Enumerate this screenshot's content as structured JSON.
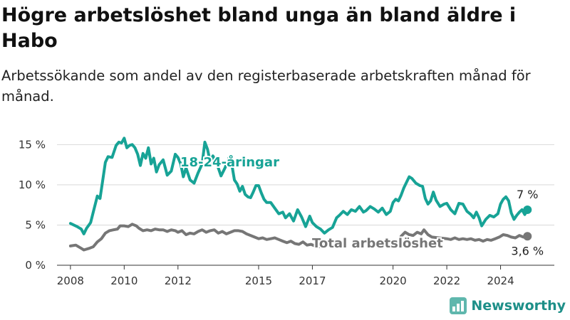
{
  "chart_data": {
    "type": "line",
    "title": "Högre arbetslöshet bland unga än bland äldre i Habo",
    "subtitle": "Arbetssökande som andel av den registerbaserade arbetskraften månad för månad.",
    "x_ticks": [
      "2008",
      "2010",
      "2012",
      "2015",
      "2017",
      "2020",
      "2022",
      "2024"
    ],
    "y_ticks": [
      "0 %",
      "5 %",
      "10 %",
      "15 %"
    ],
    "ylim": [
      0,
      16
    ],
    "grid": "horizontal",
    "series": [
      {
        "name": "18-24-åringar",
        "color": "#17a396",
        "end_label": "7 %",
        "points": [
          [
            2008.0,
            5.2
          ],
          [
            2008.25,
            4.8
          ],
          [
            2008.4,
            4.5
          ],
          [
            2008.5,
            3.9
          ],
          [
            2008.6,
            4.6
          ],
          [
            2008.75,
            5.3
          ],
          [
            2008.85,
            6.6
          ],
          [
            2009.0,
            8.6
          ],
          [
            2009.1,
            8.3
          ],
          [
            2009.2,
            10.5
          ],
          [
            2009.3,
            12.8
          ],
          [
            2009.4,
            13.5
          ],
          [
            2009.55,
            13.4
          ],
          [
            2009.7,
            14.9
          ],
          [
            2009.8,
            15.3
          ],
          [
            2009.9,
            15.2
          ],
          [
            2010.0,
            15.8
          ],
          [
            2010.1,
            14.6
          ],
          [
            2010.2,
            14.9
          ],
          [
            2010.3,
            15.0
          ],
          [
            2010.4,
            14.6
          ],
          [
            2010.5,
            13.8
          ],
          [
            2010.6,
            12.4
          ],
          [
            2010.7,
            13.9
          ],
          [
            2010.8,
            13.3
          ],
          [
            2010.9,
            14.6
          ],
          [
            2011.0,
            12.6
          ],
          [
            2011.1,
            13.3
          ],
          [
            2011.2,
            11.6
          ],
          [
            2011.3,
            12.5
          ],
          [
            2011.45,
            13.1
          ],
          [
            2011.6,
            11.2
          ],
          [
            2011.75,
            11.7
          ],
          [
            2011.9,
            13.8
          ],
          [
            2012.0,
            13.4
          ],
          [
            2012.1,
            12.6
          ],
          [
            2012.2,
            11.0
          ],
          [
            2012.3,
            12.1
          ],
          [
            2012.45,
            10.6
          ],
          [
            2012.6,
            10.2
          ],
          [
            2012.75,
            11.5
          ],
          [
            2012.9,
            12.6
          ],
          [
            2013.0,
            15.3
          ],
          [
            2013.1,
            14.4
          ],
          [
            2013.2,
            12.8
          ],
          [
            2013.3,
            13.6
          ],
          [
            2013.45,
            12.6
          ],
          [
            2013.6,
            11.1
          ],
          [
            2013.75,
            12.1
          ],
          [
            2013.9,
            13.4
          ],
          [
            2014.0,
            12.6
          ],
          [
            2014.1,
            10.6
          ],
          [
            2014.2,
            10.1
          ],
          [
            2014.3,
            9.2
          ],
          [
            2014.4,
            9.8
          ],
          [
            2014.5,
            8.8
          ],
          [
            2014.6,
            8.5
          ],
          [
            2014.7,
            8.4
          ],
          [
            2014.8,
            9.1
          ],
          [
            2014.9,
            9.9
          ],
          [
            2015.0,
            9.9
          ],
          [
            2015.1,
            9.0
          ],
          [
            2015.2,
            8.2
          ],
          [
            2015.3,
            7.8
          ],
          [
            2015.45,
            7.8
          ],
          [
            2015.6,
            7.1
          ],
          [
            2015.75,
            6.4
          ],
          [
            2015.9,
            6.6
          ],
          [
            2016.0,
            5.9
          ],
          [
            2016.15,
            6.4
          ],
          [
            2016.3,
            5.5
          ],
          [
            2016.45,
            6.9
          ],
          [
            2016.6,
            6.0
          ],
          [
            2016.75,
            4.8
          ],
          [
            2016.9,
            6.1
          ],
          [
            2017.0,
            5.3
          ],
          [
            2017.15,
            4.8
          ],
          [
            2017.3,
            4.5
          ],
          [
            2017.45,
            4.0
          ],
          [
            2017.6,
            4.4
          ],
          [
            2017.75,
            4.7
          ],
          [
            2017.9,
            5.9
          ],
          [
            2018.0,
            6.2
          ],
          [
            2018.15,
            6.7
          ],
          [
            2018.3,
            6.3
          ],
          [
            2018.45,
            6.9
          ],
          [
            2018.6,
            6.7
          ],
          [
            2018.75,
            7.3
          ],
          [
            2018.9,
            6.6
          ],
          [
            2019.0,
            6.8
          ],
          [
            2019.15,
            7.3
          ],
          [
            2019.3,
            7.0
          ],
          [
            2019.45,
            6.6
          ],
          [
            2019.6,
            7.1
          ],
          [
            2019.75,
            6.3
          ],
          [
            2019.9,
            6.7
          ],
          [
            2020.0,
            7.8
          ],
          [
            2020.1,
            8.2
          ],
          [
            2020.2,
            8.0
          ],
          [
            2020.3,
            8.7
          ],
          [
            2020.4,
            9.6
          ],
          [
            2020.5,
            10.3
          ],
          [
            2020.6,
            11.0
          ],
          [
            2020.7,
            10.8
          ],
          [
            2020.85,
            10.2
          ],
          [
            2021.0,
            9.9
          ],
          [
            2021.1,
            9.8
          ],
          [
            2021.2,
            8.3
          ],
          [
            2021.3,
            7.6
          ],
          [
            2021.4,
            8.0
          ],
          [
            2021.5,
            9.1
          ],
          [
            2021.6,
            8.1
          ],
          [
            2021.75,
            7.3
          ],
          [
            2021.9,
            7.6
          ],
          [
            2022.0,
            7.7
          ],
          [
            2022.15,
            6.9
          ],
          [
            2022.3,
            6.4
          ],
          [
            2022.45,
            7.7
          ],
          [
            2022.6,
            7.6
          ],
          [
            2022.75,
            6.7
          ],
          [
            2022.9,
            6.3
          ],
          [
            2023.0,
            5.9
          ],
          [
            2023.1,
            6.6
          ],
          [
            2023.2,
            5.9
          ],
          [
            2023.3,
            4.9
          ],
          [
            2023.45,
            5.7
          ],
          [
            2023.6,
            6.2
          ],
          [
            2023.75,
            6.0
          ],
          [
            2023.9,
            6.4
          ],
          [
            2024.0,
            7.6
          ],
          [
            2024.1,
            8.2
          ],
          [
            2024.2,
            8.5
          ],
          [
            2024.3,
            8.0
          ],
          [
            2024.4,
            6.5
          ],
          [
            2024.5,
            5.7
          ],
          [
            2024.6,
            6.2
          ],
          [
            2024.7,
            6.6
          ],
          [
            2024.8,
            6.9
          ],
          [
            2024.9,
            6.3
          ],
          [
            2025.0,
            6.9
          ]
        ]
      },
      {
        "name": "Total arbetslöshet",
        "color": "#767676",
        "end_label": "3,6 %",
        "points": [
          [
            2008.0,
            2.4
          ],
          [
            2008.2,
            2.5
          ],
          [
            2008.4,
            2.1
          ],
          [
            2008.5,
            1.9
          ],
          [
            2008.7,
            2.1
          ],
          [
            2008.85,
            2.3
          ],
          [
            2009.0,
            2.9
          ],
          [
            2009.15,
            3.3
          ],
          [
            2009.3,
            4.0
          ],
          [
            2009.45,
            4.3
          ],
          [
            2009.6,
            4.4
          ],
          [
            2009.75,
            4.5
          ],
          [
            2009.85,
            4.9
          ],
          [
            2010.0,
            4.9
          ],
          [
            2010.15,
            4.8
          ],
          [
            2010.3,
            5.1
          ],
          [
            2010.45,
            4.9
          ],
          [
            2010.55,
            4.6
          ],
          [
            2010.7,
            4.3
          ],
          [
            2010.85,
            4.4
          ],
          [
            2011.0,
            4.3
          ],
          [
            2011.15,
            4.5
          ],
          [
            2011.3,
            4.4
          ],
          [
            2011.45,
            4.4
          ],
          [
            2011.6,
            4.2
          ],
          [
            2011.75,
            4.4
          ],
          [
            2011.9,
            4.3
          ],
          [
            2012.0,
            4.1
          ],
          [
            2012.15,
            4.3
          ],
          [
            2012.3,
            3.8
          ],
          [
            2012.45,
            4.0
          ],
          [
            2012.6,
            3.9
          ],
          [
            2012.75,
            4.2
          ],
          [
            2012.9,
            4.4
          ],
          [
            2013.05,
            4.1
          ],
          [
            2013.2,
            4.3
          ],
          [
            2013.35,
            4.4
          ],
          [
            2013.5,
            4.0
          ],
          [
            2013.65,
            4.2
          ],
          [
            2013.8,
            3.9
          ],
          [
            2013.95,
            4.1
          ],
          [
            2014.1,
            4.3
          ],
          [
            2014.25,
            4.3
          ],
          [
            2014.4,
            4.2
          ],
          [
            2014.55,
            3.9
          ],
          [
            2014.7,
            3.7
          ],
          [
            2014.85,
            3.5
          ],
          [
            2015.0,
            3.3
          ],
          [
            2015.15,
            3.4
          ],
          [
            2015.3,
            3.2
          ],
          [
            2015.45,
            3.3
          ],
          [
            2015.6,
            3.4
          ],
          [
            2015.75,
            3.2
          ],
          [
            2015.9,
            3.0
          ],
          [
            2016.05,
            2.8
          ],
          [
            2016.2,
            3.0
          ],
          [
            2016.35,
            2.7
          ],
          [
            2016.5,
            2.6
          ],
          [
            2016.65,
            2.9
          ],
          [
            2016.8,
            2.5
          ],
          [
            2016.95,
            2.6
          ],
          [
            2017.1,
            2.4
          ],
          [
            2017.25,
            2.3
          ],
          [
            2017.4,
            2.5
          ],
          [
            2020.3,
            3.6
          ],
          [
            2020.45,
            4.1
          ],
          [
            2020.6,
            3.8
          ],
          [
            2020.75,
            3.7
          ],
          [
            2020.9,
            4.1
          ],
          [
            2021.05,
            3.9
          ],
          [
            2021.15,
            4.4
          ],
          [
            2021.3,
            3.8
          ],
          [
            2021.45,
            3.5
          ],
          [
            2022.0,
            3.3
          ],
          [
            2022.15,
            3.2
          ],
          [
            2022.3,
            3.4
          ],
          [
            2022.45,
            3.2
          ],
          [
            2022.6,
            3.3
          ],
          [
            2022.75,
            3.2
          ],
          [
            2022.9,
            3.3
          ],
          [
            2023.05,
            3.1
          ],
          [
            2023.2,
            3.2
          ],
          [
            2023.35,
            3.0
          ],
          [
            2023.5,
            3.2
          ],
          [
            2023.65,
            3.1
          ],
          [
            2023.8,
            3.3
          ],
          [
            2023.95,
            3.5
          ],
          [
            2024.1,
            3.8
          ],
          [
            2024.25,
            3.7
          ],
          [
            2024.4,
            3.5
          ],
          [
            2024.55,
            3.4
          ],
          [
            2024.7,
            3.7
          ],
          [
            2024.85,
            3.5
          ],
          [
            2025.0,
            3.6
          ]
        ]
      }
    ]
  },
  "brand": {
    "name": "Newsworthy"
  }
}
